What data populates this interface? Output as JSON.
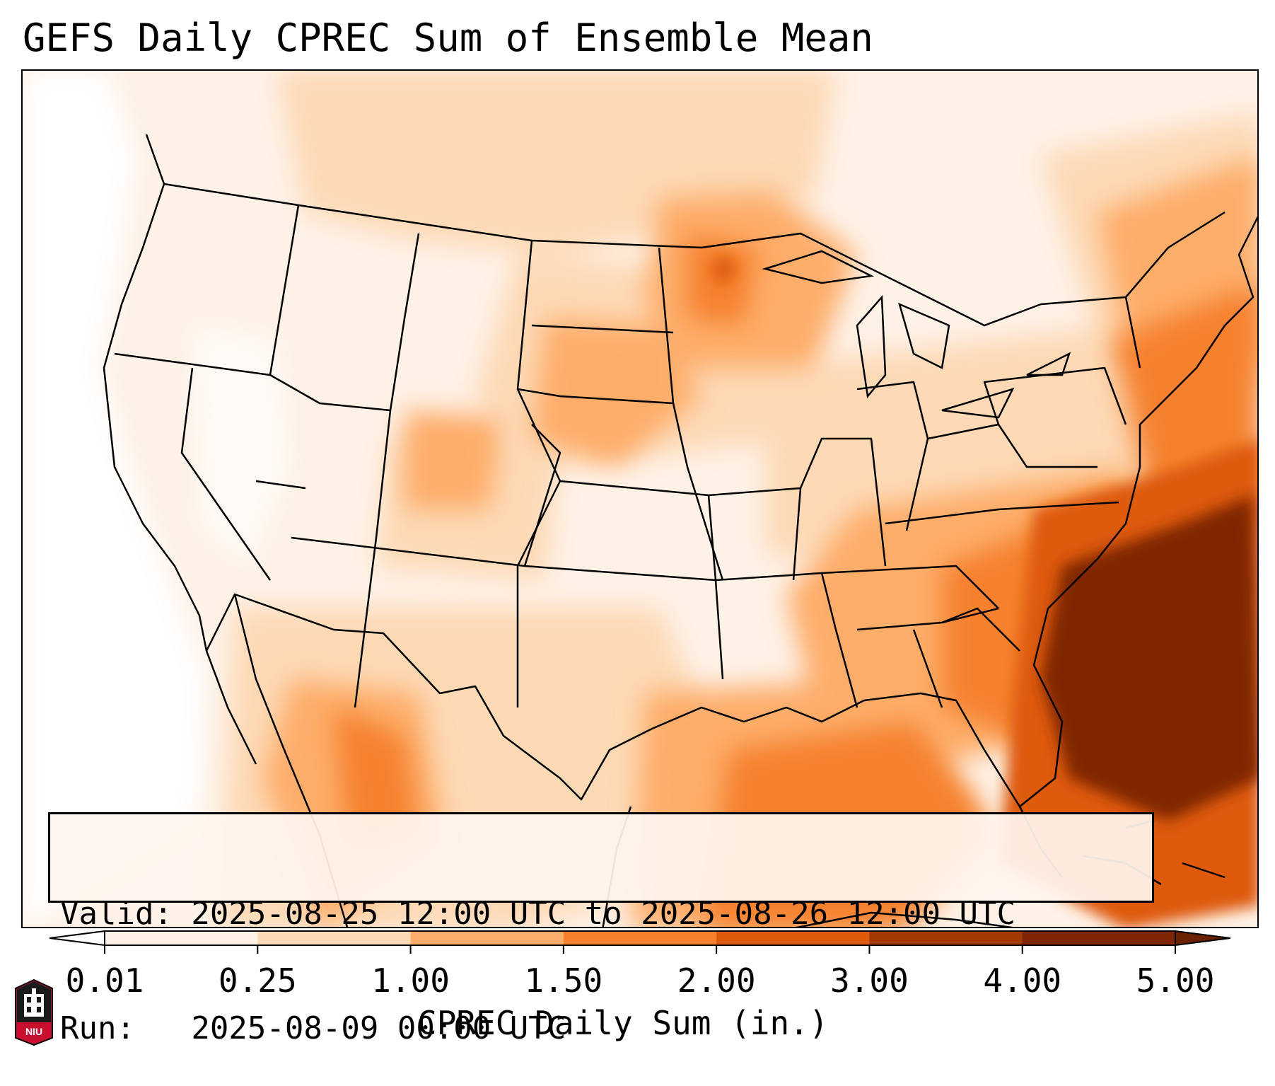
{
  "title": "GEFS Daily CPREC Sum of Ensemble Mean",
  "info": {
    "valid": "Valid: 2025-08-25 12:00 UTC to 2025-08-26 12:00 UTC",
    "run": "Run:   2025-08-09 00:00 UTC"
  },
  "colorbar": {
    "label": "CPREC Daily Sum (in.)",
    "ticks": [
      "0.01",
      "0.25",
      "1.00",
      "1.50",
      "2.00",
      "3.00",
      "4.00",
      "5.00"
    ],
    "colors": [
      "#fef1e6",
      "#fdd9b5",
      "#fdad6b",
      "#f5812f",
      "#de5a0b",
      "#a33a04",
      "#7f2704"
    ],
    "under_color": "#ffffff",
    "over_color": "#6b2103"
  },
  "map": {
    "region": "Contiguous United States",
    "field": "CPREC daily sum",
    "heaviest_area": "Southeast U.S. coast and western Atlantic"
  },
  "logo": {
    "text": "NIU"
  }
}
